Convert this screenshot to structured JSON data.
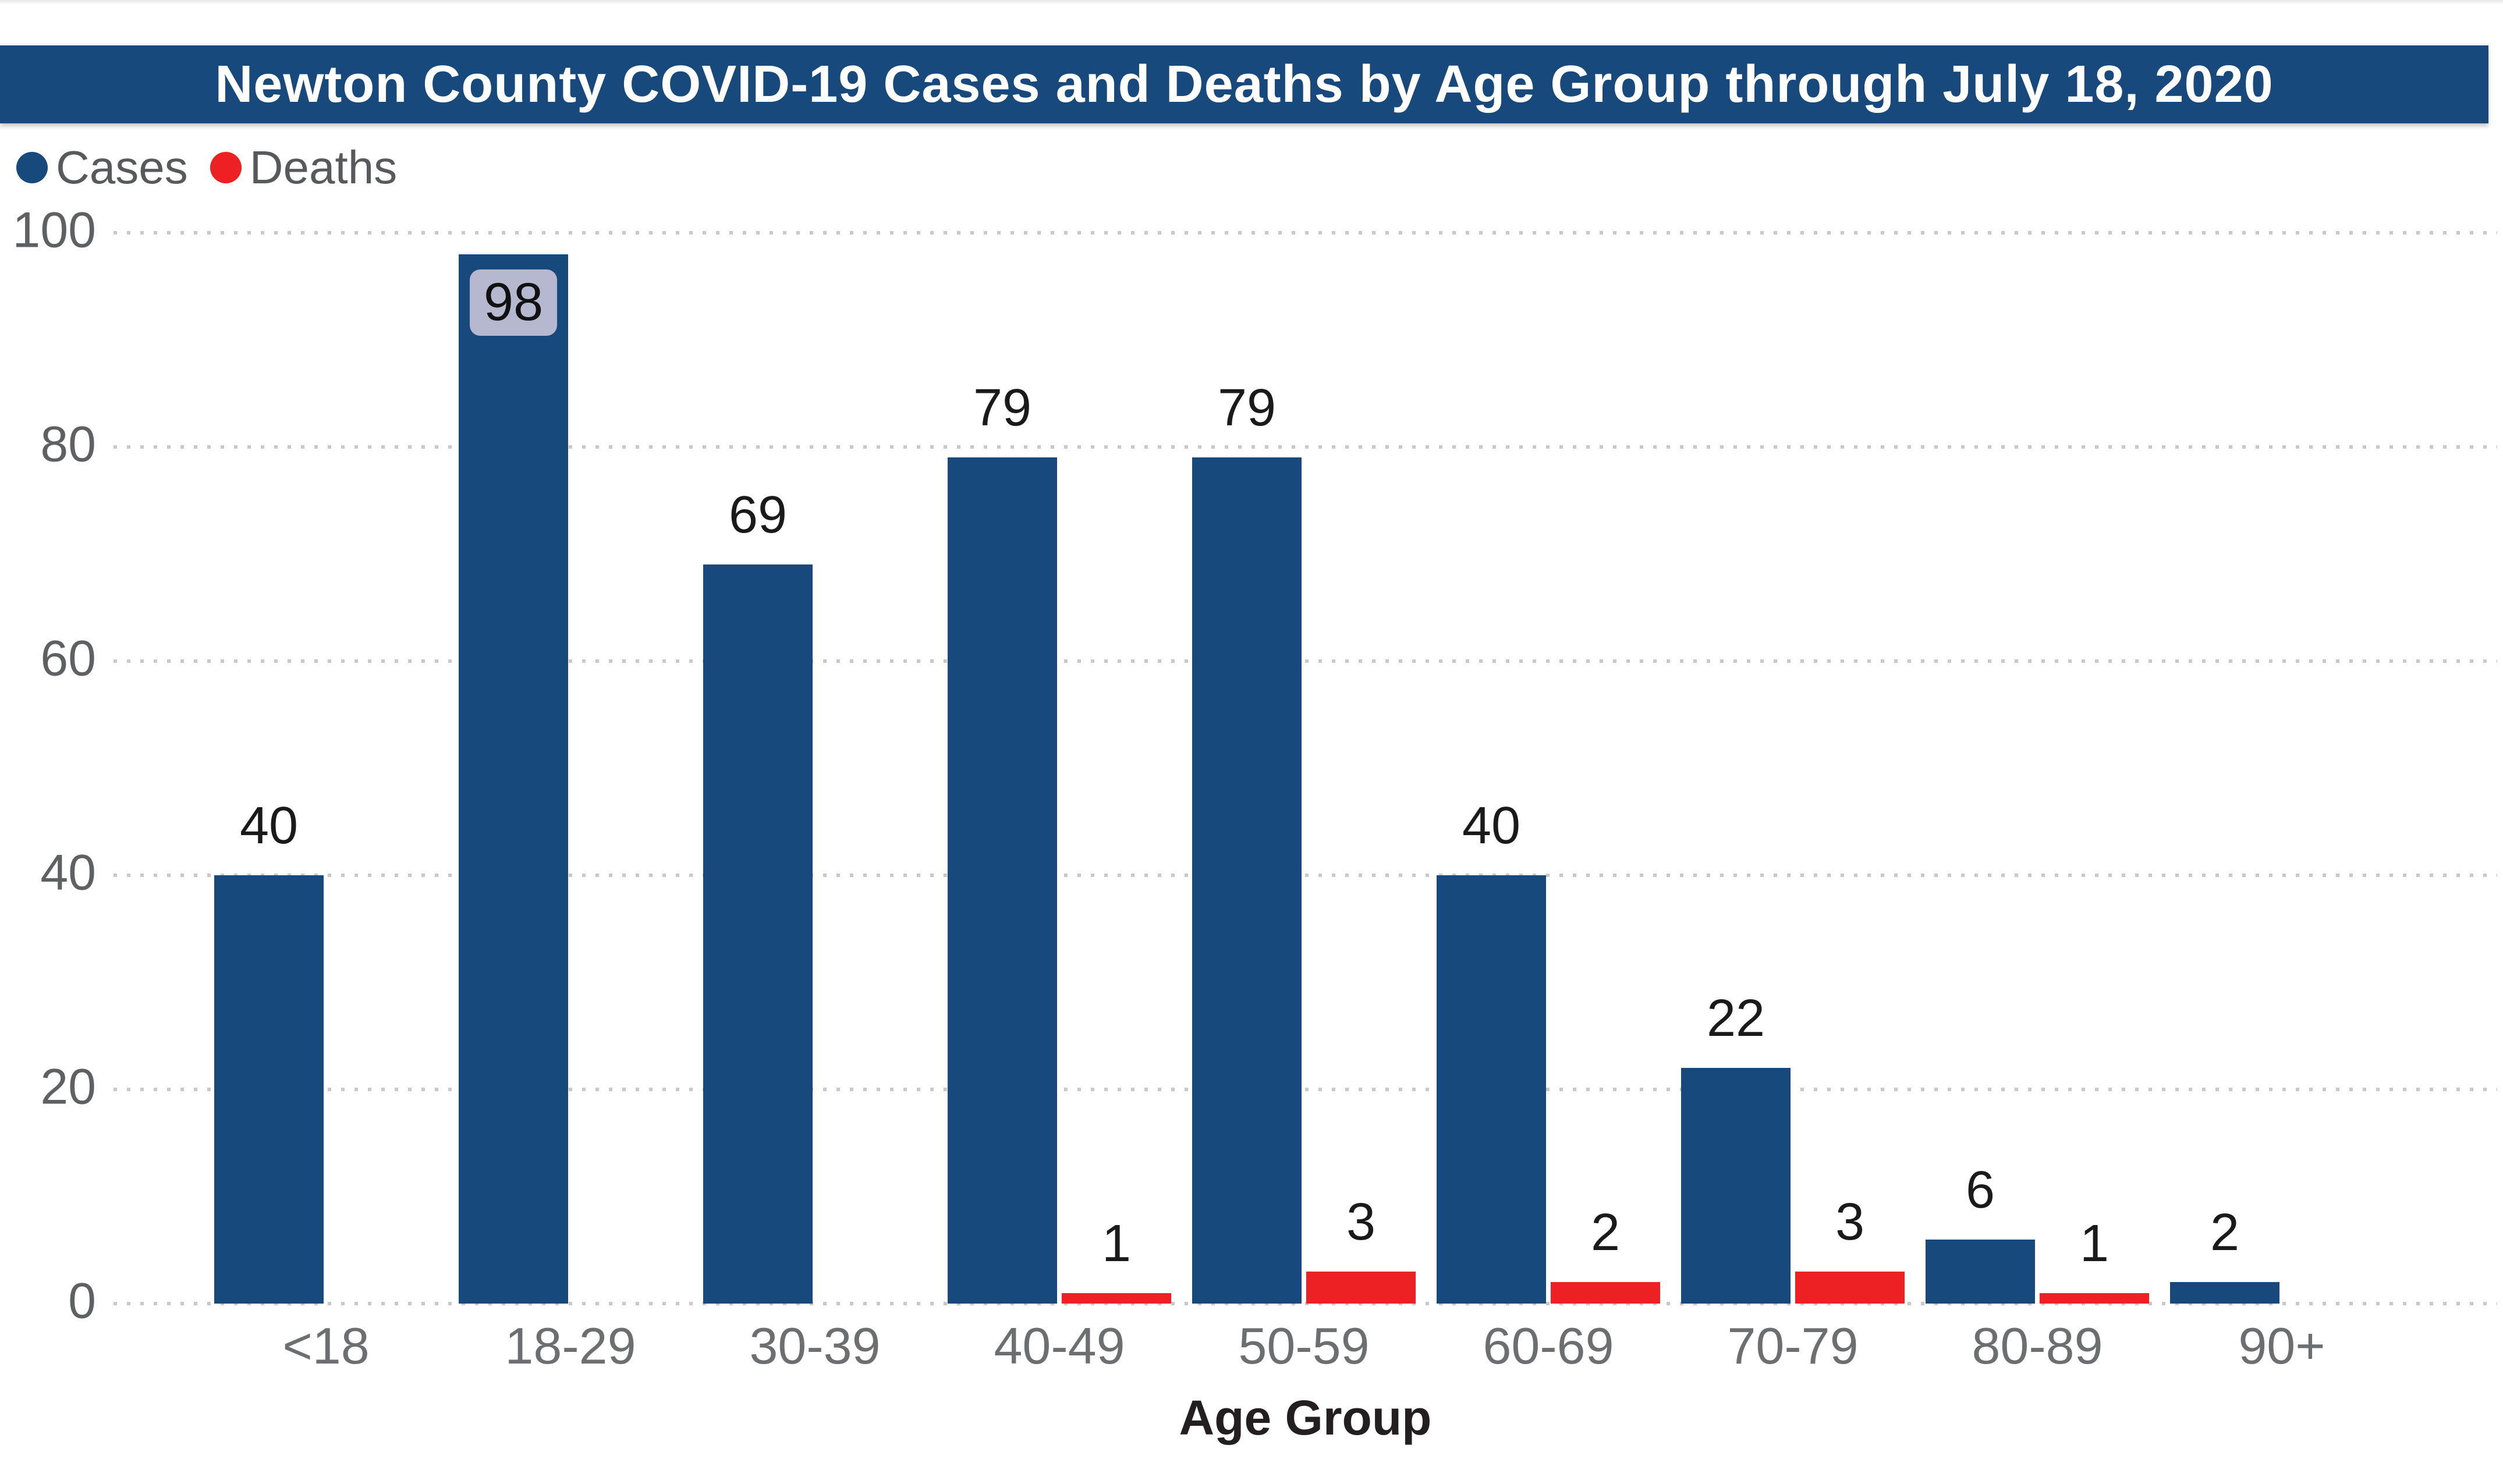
{
  "title": {
    "text": "Newton County COVID-19 Cases and Deaths by Age Group through July 18, 2020",
    "bg_color": "#17497D",
    "text_color": "#ffffff"
  },
  "legend": {
    "items": [
      {
        "label": "Cases",
        "color": "#17497D"
      },
      {
        "label": "Deaths",
        "color": "#ED2024"
      }
    ]
  },
  "chart_data": {
    "type": "bar",
    "title": "Newton County COVID-19 Cases and Deaths by Age Group through July 18, 2020",
    "categories": [
      "<18",
      "18-29",
      "30-39",
      "40-49",
      "50-59",
      "60-69",
      "70-79",
      "80-89",
      "90+"
    ],
    "series": [
      {
        "name": "Cases",
        "color": "#17497D",
        "values": [
          40,
          98,
          69,
          79,
          79,
          40,
          22,
          6,
          2
        ]
      },
      {
        "name": "Deaths",
        "color": "#ED2024",
        "values": [
          0,
          0,
          0,
          1,
          3,
          2,
          3,
          1,
          0
        ]
      }
    ],
    "xlabel": "Age Group",
    "ylabel": "",
    "ylim": [
      0,
      100
    ],
    "yticks": [
      0,
      20,
      40,
      60,
      80,
      100
    ],
    "grid": "horizontal-dotted",
    "gridline_color": "#c9c9c9",
    "legend_position": "top-left",
    "value_labels": "shown above bars, zero values unlabeled",
    "highlight": {
      "series": "Cases",
      "category": "18-29",
      "value": 98,
      "badge_bg": "#B5B8CF",
      "badge_text_color": "#111111"
    },
    "tick_label_color": "#5f6062",
    "xtick_label_color": "#6d6e70",
    "value_label_color": "#1a1a1a"
  }
}
